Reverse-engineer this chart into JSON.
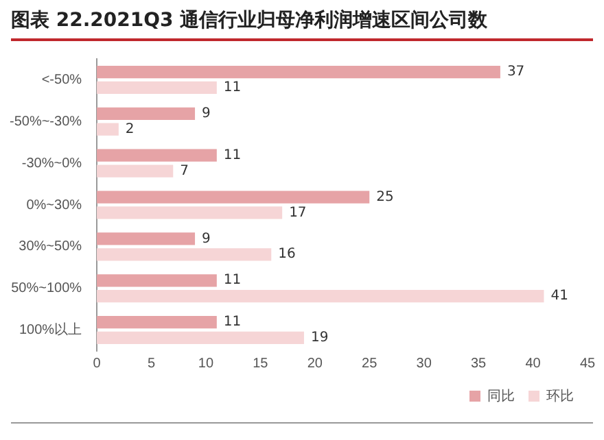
{
  "chart_data": {
    "type": "bar",
    "orientation": "horizontal",
    "title": "图表 22.2021Q3 通信行业归母净利润增速区间公司数",
    "categories": [
      "<-50%",
      "-50%~-30%",
      "-30%~0%",
      "0%~30%",
      "30%~50%",
      "50%~100%",
      "100%以上"
    ],
    "series": [
      {
        "name": "同比",
        "color": "#e6a3a6",
        "values": [
          37,
          9,
          11,
          25,
          9,
          11,
          11
        ]
      },
      {
        "name": "环比",
        "color": "#f6d5d6",
        "values": [
          11,
          2,
          7,
          17,
          16,
          41,
          19
        ]
      }
    ],
    "xlim": [
      0,
      45
    ],
    "xticks": [
      0,
      5,
      10,
      15,
      20,
      25,
      30,
      35,
      40,
      45
    ],
    "grid": false,
    "legend": "bottom right",
    "data_labels": true
  }
}
